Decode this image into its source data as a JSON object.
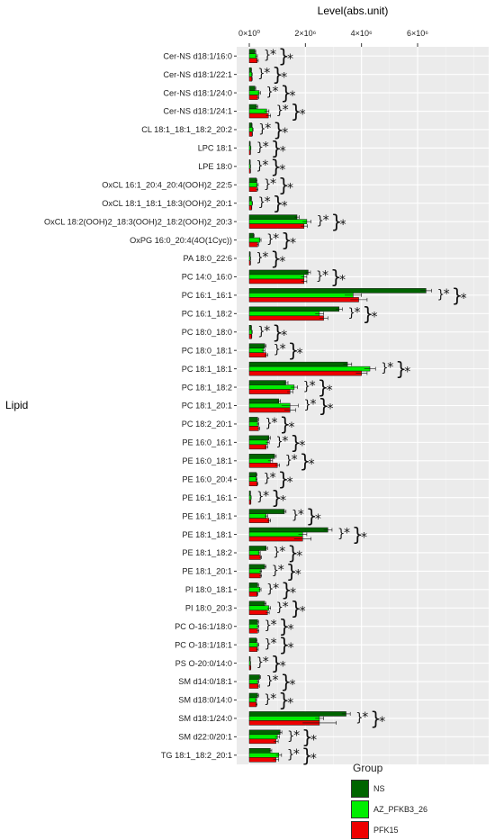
{
  "chart_data": {
    "type": "bar",
    "orientation": "horizontal",
    "title": "",
    "xlabel": "Level(abs.unit)",
    "ylabel": "Lipid",
    "xlim": [
      0,
      8700000
    ],
    "xticks": [
      {
        "value": 0,
        "label": "0×10⁰"
      },
      {
        "value": 2000000,
        "label": "2×10⁶"
      },
      {
        "value": 4000000,
        "label": "4×10⁶"
      },
      {
        "value": 6000000,
        "label": "6×10⁶"
      }
    ],
    "x_axis_position": "top",
    "grid": true,
    "legend": {
      "title": "Group",
      "position": "bottom-right"
    },
    "significance_marker": "*",
    "categories": [
      "Cer-NS d18:1/16:0",
      "Cer-NS d18:1/22:1",
      "Cer-NS d18:1/24:0",
      "Cer-NS d18:1/24:1",
      "CL 18:1_18:1_18:2_20:2",
      "LPC 18:1",
      "LPE 18:0",
      "OxCL 16:1_20:4_20:4(OOH)2_22:5",
      "OxCL 18:1_18:1_18:3(OOH)2_20:1",
      "OxCL 18:2(OOH)2_18:3(OOH)2_18:2(OOH)2_20:3",
      "OxPG 16:0_20:4(4O(1Cyc))",
      "PA 18:0_22:6",
      "PC 14:0_16:0",
      "PC 16:1_16:1",
      "PC 16:1_18:2",
      "PC 18:0_18:0",
      "PC 18:0_18:1",
      "PC 18:1_18:1",
      "PC 18:1_18:2",
      "PC 18:1_20:1",
      "PC 18:2_20:1",
      "PE 16:0_16:1",
      "PE 16:0_18:1",
      "PE 16:0_20:4",
      "PE 16:1_16:1",
      "PE 16:1_18:1",
      "PE 18:1_18:1",
      "PE 18:1_18:2",
      "PE 18:1_20:1",
      "PI 18:0_18:1",
      "PI 18:0_20:3",
      "PC O-16:1/18:0",
      "PC O-18:1/18:1",
      "PS O-20:0/14:0",
      "SM d14:0/18:1",
      "SM d18:0/14:0",
      "SM d18:1/24:0",
      "SM d22:0/20:1",
      "TG 18:1_18:2_20:1"
    ],
    "series": [
      {
        "name": "NS",
        "color": "#006400",
        "values": [
          200000,
          70000,
          200000,
          260000,
          90000,
          30000,
          30000,
          250000,
          70000,
          1700000,
          150000,
          30000,
          2100000,
          6300000,
          3200000,
          70000,
          550000,
          3500000,
          1300000,
          1050000,
          300000,
          700000,
          900000,
          250000,
          40000,
          1250000,
          2800000,
          600000,
          550000,
          300000,
          550000,
          300000,
          250000,
          30000,
          370000,
          300000,
          3450000,
          1100000,
          750000
        ],
        "errors": [
          30000,
          10000,
          30000,
          40000,
          10000,
          5000,
          5000,
          30000,
          10000,
          80000,
          20000,
          5000,
          80000,
          200000,
          120000,
          10000,
          50000,
          150000,
          80000,
          60000,
          30000,
          50000,
          60000,
          30000,
          5000,
          60000,
          150000,
          50000,
          50000,
          30000,
          50000,
          30000,
          30000,
          5000,
          30000,
          30000,
          150000,
          60000,
          50000
        ]
      },
      {
        "name": "AZ_PFKB3_26",
        "color": "#00ee00",
        "values": [
          250000,
          90000,
          350000,
          620000,
          120000,
          50000,
          40000,
          280000,
          100000,
          2050000,
          380000,
          40000,
          1950000,
          3700000,
          2500000,
          90000,
          500000,
          4300000,
          1600000,
          1450000,
          300000,
          650000,
          750000,
          250000,
          60000,
          600000,
          1900000,
          350000,
          400000,
          380000,
          700000,
          300000,
          300000,
          40000,
          300000,
          230000,
          2500000,
          1000000,
          1050000
        ],
        "errors": [
          40000,
          15000,
          50000,
          80000,
          15000,
          8000,
          6000,
          40000,
          15000,
          150000,
          40000,
          6000,
          100000,
          300000,
          150000,
          15000,
          60000,
          200000,
          120000,
          300000,
          40000,
          60000,
          80000,
          30000,
          8000,
          60000,
          150000,
          40000,
          40000,
          40000,
          60000,
          40000,
          40000,
          6000,
          40000,
          30000,
          150000,
          80000,
          100000
        ]
      },
      {
        "name": "PFK15",
        "color": "#ee0000",
        "values": [
          280000,
          90000,
          300000,
          680000,
          100000,
          40000,
          40000,
          270000,
          80000,
          1950000,
          300000,
          40000,
          1950000,
          3900000,
          2650000,
          80000,
          600000,
          4000000,
          1450000,
          1450000,
          330000,
          600000,
          1000000,
          280000,
          50000,
          700000,
          1900000,
          400000,
          400000,
          280000,
          650000,
          300000,
          280000,
          50000,
          320000,
          250000,
          2500000,
          950000,
          950000
        ],
        "errors": [
          40000,
          15000,
          40000,
          80000,
          15000,
          6000,
          6000,
          40000,
          10000,
          120000,
          30000,
          6000,
          100000,
          300000,
          150000,
          10000,
          60000,
          200000,
          100000,
          200000,
          40000,
          60000,
          80000,
          30000,
          8000,
          60000,
          300000,
          40000,
          40000,
          30000,
          60000,
          40000,
          40000,
          6000,
          40000,
          30000,
          600000,
          80000,
          100000
        ]
      }
    ]
  }
}
